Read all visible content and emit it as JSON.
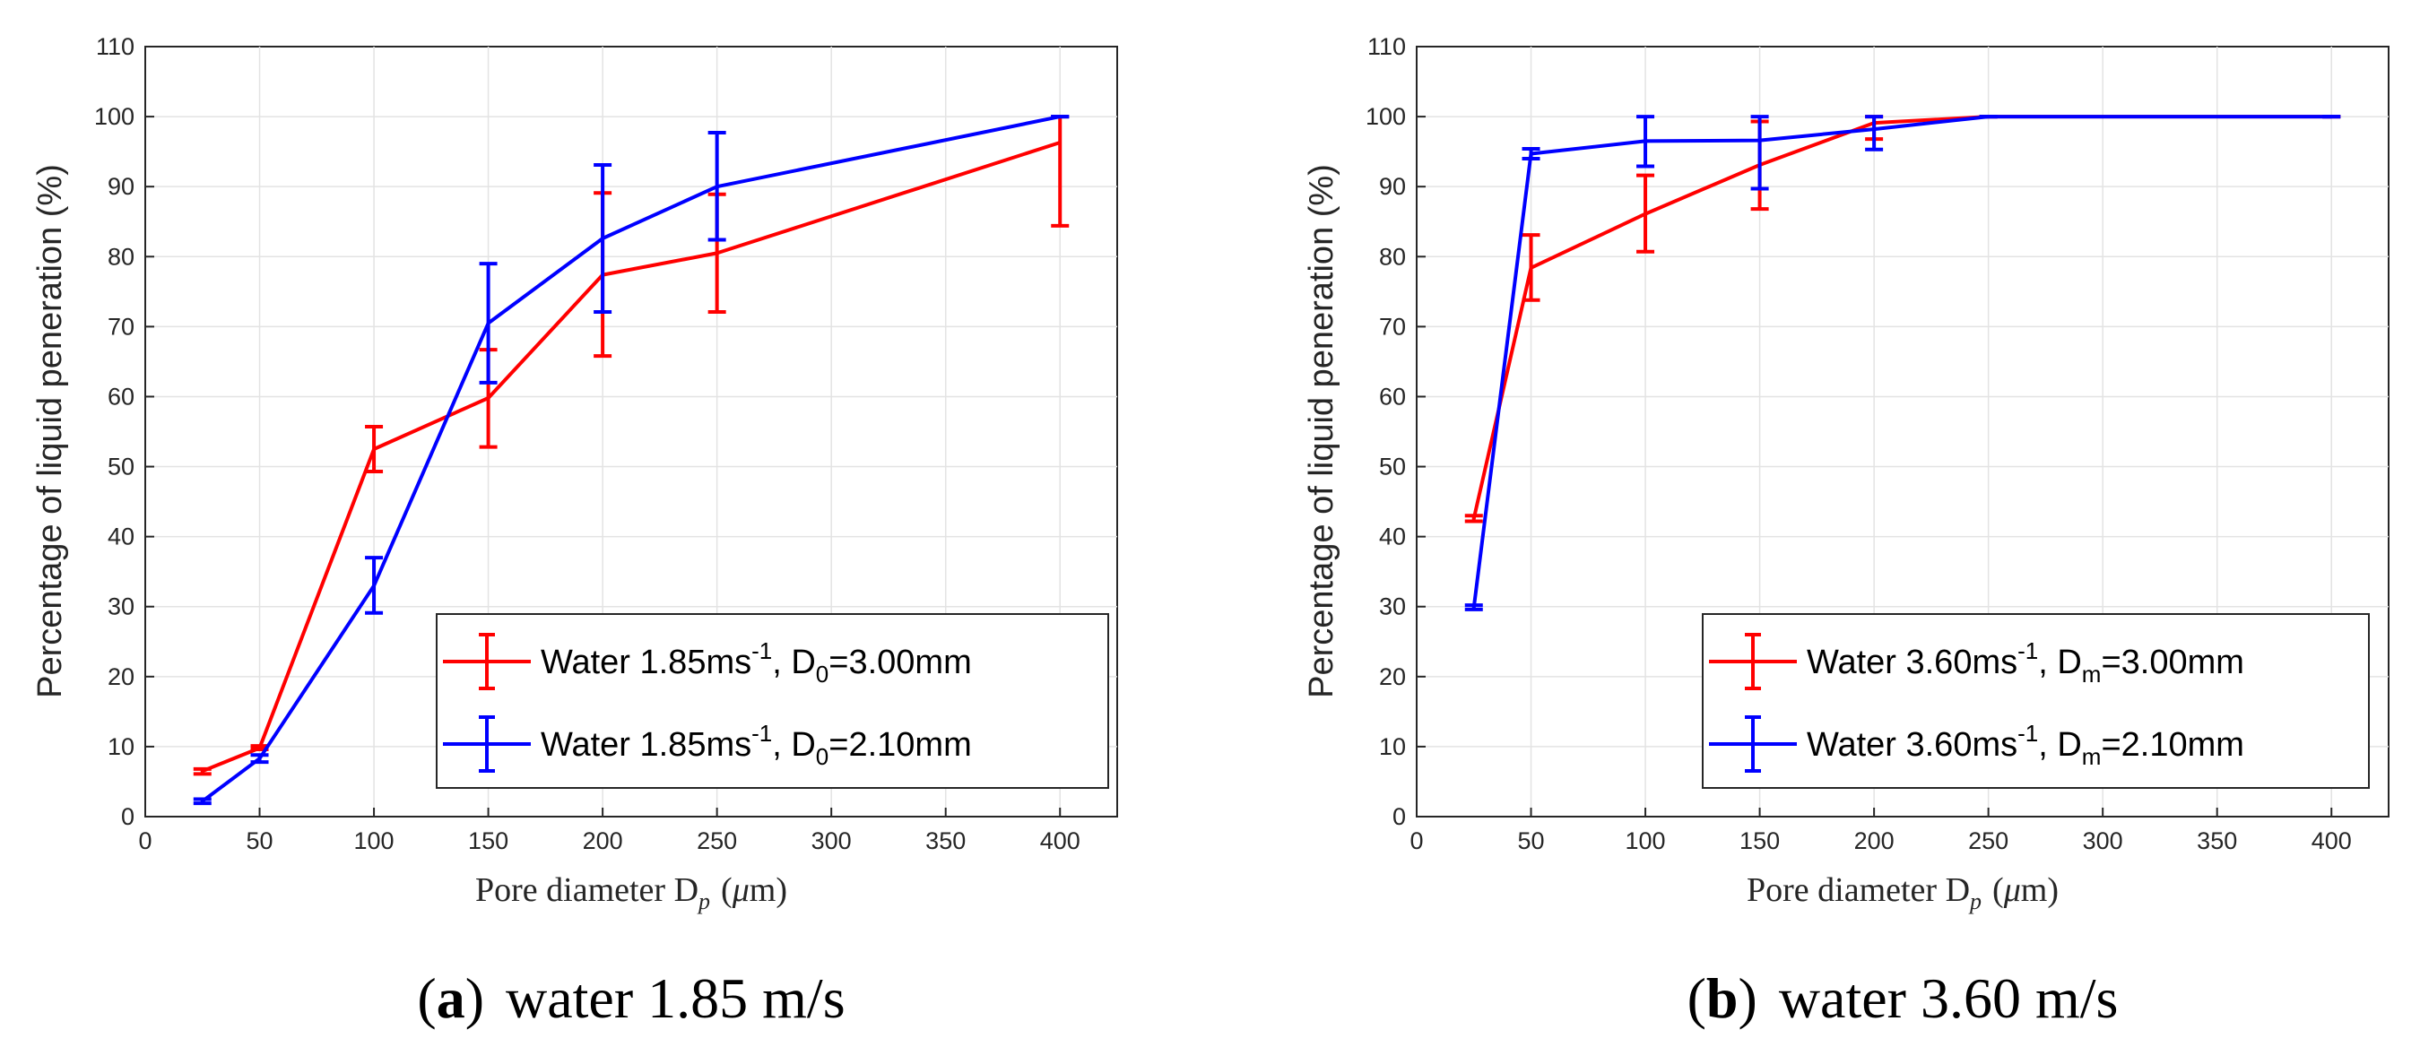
{
  "chart_data": [
    {
      "type": "line",
      "panel": "a",
      "caption": {
        "open": "(",
        "letter": "a",
        "close": ")",
        "text": "water 1.85 m/s"
      },
      "xlabel": {
        "main": "Pore diameter D",
        "sub": "p",
        "unit": "(",
        "mu": "μ",
        "unit_tail": "m)"
      },
      "ylabel": "Percentage of liquid peneration (%)",
      "xlim": [
        0,
        425
      ],
      "ylim": [
        0,
        110
      ],
      "xticks": [
        0,
        50,
        100,
        150,
        200,
        250,
        300,
        350,
        400
      ],
      "yticks": [
        0,
        10,
        20,
        30,
        40,
        50,
        60,
        70,
        80,
        90,
        100,
        110
      ],
      "grid": true,
      "legend_position": "bottom-right",
      "series": [
        {
          "name": "Water 1.85ms-1, D0=3.00mm",
          "legend": {
            "a": "Water 1.85ms",
            "sup": "-1",
            "b": ", D",
            "sub": "0",
            "c": "=3.00mm"
          },
          "color": "#ff0000",
          "x": [
            25,
            50,
            100,
            150,
            200,
            250,
            400
          ],
          "y": [
            6.5,
            9.8,
            52.5,
            59.8,
            77.4,
            80.5,
            96.3
          ],
          "err_low": [
            6.1,
            9.6,
            49.3,
            52.8,
            65.8,
            72.1,
            84.4
          ],
          "err_high": [
            6.8,
            10.1,
            55.7,
            66.7,
            89.1,
            88.9,
            100.0
          ]
        },
        {
          "name": "Water 1.85ms-1, D0=2.10mm",
          "legend": {
            "a": "Water 1.85ms",
            "sup": "-1",
            "b": ", D",
            "sub": "0",
            "c": "=2.10mm"
          },
          "color": "#0000ff",
          "x": [
            25,
            50,
            100,
            150,
            200,
            250,
            400
          ],
          "y": [
            2.2,
            8.3,
            33.0,
            70.5,
            82.6,
            90.0,
            100.0
          ],
          "err_low": [
            1.9,
            7.8,
            29.1,
            62.0,
            72.1,
            82.4,
            100.0
          ],
          "err_high": [
            2.5,
            8.8,
            37.0,
            79.0,
            93.1,
            97.7,
            100.0
          ]
        }
      ]
    },
    {
      "type": "line",
      "panel": "b",
      "caption": {
        "open": "(",
        "letter": "b",
        "close": ")",
        "text": "water 3.60 m/s"
      },
      "xlabel": {
        "main": "Pore diameter D",
        "sub": "p",
        "unit": "(",
        "mu": "μ",
        "unit_tail": "m)"
      },
      "ylabel": "Percentage of liquid peneration (%)",
      "xlim": [
        0,
        425
      ],
      "ylim": [
        0,
        110
      ],
      "xticks": [
        0,
        50,
        100,
        150,
        200,
        250,
        300,
        350,
        400
      ],
      "yticks": [
        0,
        10,
        20,
        30,
        40,
        50,
        60,
        70,
        80,
        90,
        100,
        110
      ],
      "grid": true,
      "legend_position": "bottom-right",
      "series": [
        {
          "name": "Water 3.60ms-1, Dm=3.00mm",
          "legend": {
            "a": "Water 3.60ms",
            "sup": "-1",
            "b": ", D",
            "sub": "m",
            "c": "=3.00mm"
          },
          "color": "#ff0000",
          "x": [
            25,
            50,
            100,
            150,
            200,
            250,
            400
          ],
          "y": [
            42.6,
            78.4,
            86.1,
            93.1,
            99.1,
            100.0,
            100.0
          ],
          "err_low": [
            42.2,
            73.8,
            80.7,
            86.8,
            96.8,
            100.0,
            100.0
          ],
          "err_high": [
            43.0,
            83.1,
            91.6,
            99.3,
            100.0,
            100.0,
            100.0
          ]
        },
        {
          "name": "Water 3.60ms-1, Dm=2.10mm",
          "legend": {
            "a": "Water 3.60ms",
            "sup": "-1",
            "b": ", D",
            "sub": "m",
            "c": "=2.10mm"
          },
          "color": "#0000ff",
          "x": [
            25,
            50,
            100,
            150,
            200,
            250,
            400
          ],
          "y": [
            29.9,
            94.7,
            96.5,
            96.6,
            98.2,
            100.0,
            100.0
          ],
          "err_low": [
            29.6,
            94.0,
            92.9,
            89.7,
            95.3,
            100.0,
            100.0
          ],
          "err_high": [
            30.2,
            95.4,
            100.0,
            100.0,
            100.0,
            100.0,
            100.0
          ]
        }
      ]
    }
  ]
}
